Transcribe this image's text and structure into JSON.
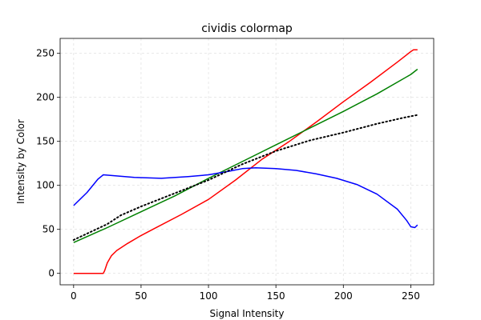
{
  "chart_data": {
    "type": "line",
    "title": "cividis colormap",
    "xlabel": "Signal Intensity",
    "ylabel": "Intensity by Color",
    "xlim": [
      -10,
      267
    ],
    "ylim": [
      -13,
      267
    ],
    "xticks": [
      0,
      50,
      100,
      150,
      200,
      250
    ],
    "yticks": [
      0,
      50,
      100,
      150,
      200,
      250
    ],
    "grid": true,
    "series": [
      {
        "color": "#ff0000",
        "style": "solid",
        "points": [
          [
            0,
            0
          ],
          [
            10,
            0
          ],
          [
            22,
            0
          ],
          [
            23,
            3
          ],
          [
            25,
            12
          ],
          [
            28,
            20
          ],
          [
            32,
            26
          ],
          [
            40,
            34
          ],
          [
            50,
            43
          ],
          [
            60,
            51
          ],
          [
            80,
            67
          ],
          [
            100,
            84
          ],
          [
            120,
            106
          ],
          [
            140,
            130
          ],
          [
            160,
            150
          ],
          [
            180,
            172
          ],
          [
            200,
            195
          ],
          [
            220,
            217
          ],
          [
            240,
            240
          ],
          [
            250,
            252
          ],
          [
            252,
            254
          ],
          [
            255,
            254
          ]
        ]
      },
      {
        "color": "#008000",
        "style": "solid",
        "points": [
          [
            0,
            35
          ],
          [
            25,
            52
          ],
          [
            50,
            70
          ],
          [
            75,
            88
          ],
          [
            100,
            108
          ],
          [
            125,
            127
          ],
          [
            150,
            146
          ],
          [
            175,
            165
          ],
          [
            200,
            184
          ],
          [
            225,
            204
          ],
          [
            250,
            226
          ],
          [
            255,
            232
          ]
        ]
      },
      {
        "color": "#0000ff",
        "style": "solid",
        "points": [
          [
            0,
            77
          ],
          [
            10,
            92
          ],
          [
            18,
            107
          ],
          [
            22,
            112
          ],
          [
            30,
            111
          ],
          [
            45,
            109
          ],
          [
            65,
            108
          ],
          [
            85,
            110
          ],
          [
            100,
            112
          ],
          [
            115,
            116
          ],
          [
            125,
            119
          ],
          [
            135,
            120
          ],
          [
            150,
            119
          ],
          [
            165,
            117
          ],
          [
            180,
            113
          ],
          [
            195,
            108
          ],
          [
            210,
            101
          ],
          [
            225,
            90
          ],
          [
            240,
            73
          ],
          [
            247,
            60
          ],
          [
            250,
            53
          ],
          [
            253,
            52
          ],
          [
            255,
            55
          ]
        ]
      },
      {
        "color": "#000000",
        "style": "dotted",
        "points": [
          [
            0,
            38
          ],
          [
            25,
            56
          ],
          [
            35,
            66
          ],
          [
            50,
            76
          ],
          [
            75,
            91
          ],
          [
            100,
            106
          ],
          [
            125,
            124
          ],
          [
            150,
            139
          ],
          [
            175,
            151
          ],
          [
            200,
            160
          ],
          [
            225,
            170
          ],
          [
            245,
            177
          ],
          [
            255,
            180
          ]
        ]
      }
    ]
  }
}
